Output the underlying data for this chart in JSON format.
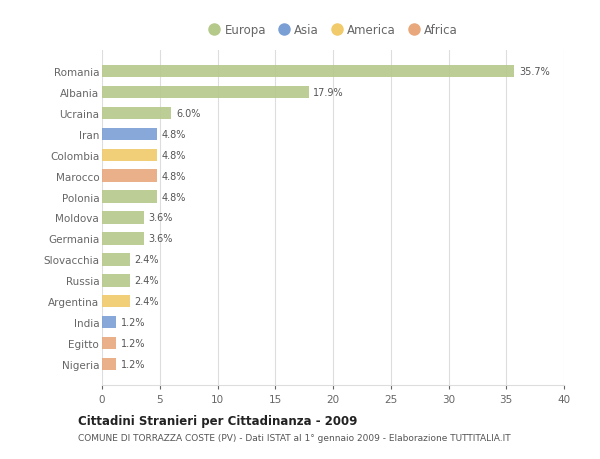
{
  "countries": [
    "Romania",
    "Albania",
    "Ucraina",
    "Iran",
    "Colombia",
    "Marocco",
    "Polonia",
    "Moldova",
    "Germania",
    "Slovacchia",
    "Russia",
    "Argentina",
    "India",
    "Egitto",
    "Nigeria"
  ],
  "values": [
    35.7,
    17.9,
    6.0,
    4.8,
    4.8,
    4.8,
    4.8,
    3.6,
    3.6,
    2.4,
    2.4,
    2.4,
    1.2,
    1.2,
    1.2
  ],
  "continents": [
    "Europa",
    "Europa",
    "Europa",
    "Asia",
    "America",
    "Africa",
    "Europa",
    "Europa",
    "Europa",
    "Europa",
    "Europa",
    "America",
    "Asia",
    "Africa",
    "Africa"
  ],
  "continent_colors": {
    "Europa": "#b5c98a",
    "Asia": "#7a9fd4",
    "America": "#f0ca6b",
    "Africa": "#e8a87c"
  },
  "legend_order": [
    "Europa",
    "Asia",
    "America",
    "Africa"
  ],
  "xlim": [
    0,
    40
  ],
  "xticks": [
    0,
    5,
    10,
    15,
    20,
    25,
    30,
    35,
    40
  ],
  "title_main": "Cittadini Stranieri per Cittadinanza - 2009",
  "title_sub": "COMUNE DI TORRAZZA COSTE (PV) - Dati ISTAT al 1° gennaio 2009 - Elaborazione TUTTITALIA.IT",
  "bg_color": "#ffffff",
  "bar_bg_color": "#ffffff",
  "grid_color": "#dddddd",
  "label_color": "#666666",
  "value_color": "#555555"
}
